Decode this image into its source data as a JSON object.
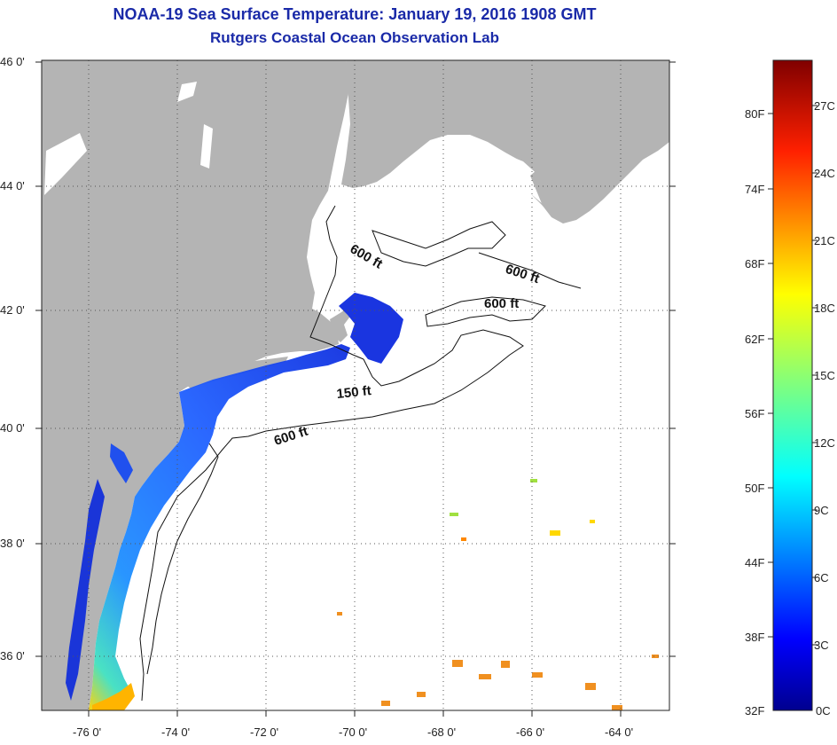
{
  "header": {
    "title": "NOAA-19 Sea Surface Temperature:  January 19, 2016 1908 GMT",
    "subtitle": "Rutgers Coastal Ocean Observation Lab"
  },
  "map": {
    "lat_labels": [
      "46 0'",
      "44 0'",
      "42 0'",
      "40 0'",
      "38 0'",
      "36 0'"
    ],
    "lon_labels": [
      "-76 0'",
      "-74 0'",
      "-72 0'",
      "-70 0'",
      "-68 0'",
      "-66 0'",
      "-64 0'"
    ],
    "contours": [
      "600 ft",
      "600 ft",
      "600 ft",
      "150 ft",
      "600 ft"
    ],
    "colors": {
      "land": "#b4b4b4",
      "ocean": "#ffffff",
      "grid": "#555555"
    }
  },
  "colorbar": {
    "fahrenheit": [
      "80F",
      "74F",
      "68F",
      "62F",
      "56F",
      "50F",
      "44F",
      "38F",
      "32F"
    ],
    "celsius": [
      "27C",
      "24C",
      "21C",
      "18C",
      "15C",
      "12C",
      "9C",
      "6C",
      "3C",
      "0C"
    ]
  }
}
